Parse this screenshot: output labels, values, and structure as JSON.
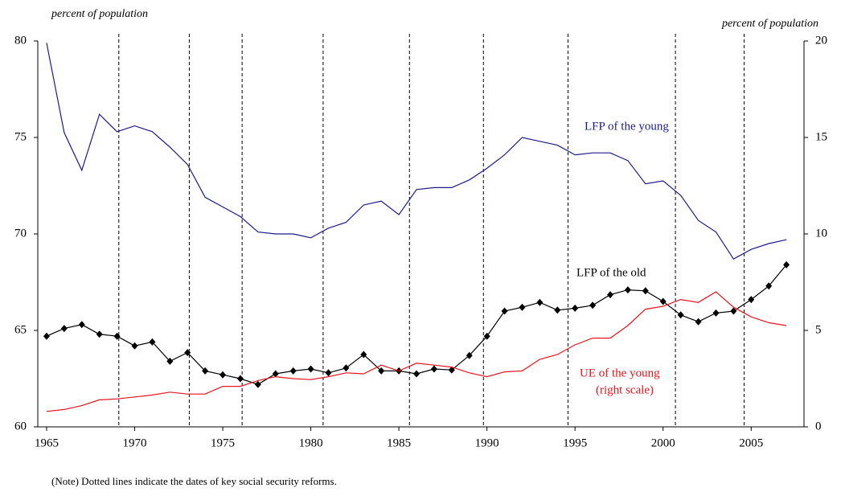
{
  "chart_data": {
    "type": "line",
    "left_axis_label": "percent of population",
    "right_axis_label": "percent of population",
    "note": "(Note) Dotted lines indicate the dates of key social security reforms.",
    "x": [
      1965,
      1966,
      1967,
      1968,
      1969,
      1970,
      1971,
      1972,
      1973,
      1974,
      1975,
      1976,
      1977,
      1978,
      1979,
      1980,
      1981,
      1982,
      1983,
      1984,
      1985,
      1986,
      1987,
      1988,
      1989,
      1990,
      1991,
      1992,
      1993,
      1994,
      1995,
      1996,
      1997,
      1998,
      1999,
      2000,
      2001,
      2002,
      2003,
      2004,
      2005,
      2006,
      2007
    ],
    "series": [
      {
        "name": "LFP of the young",
        "color": "#1c1c8c",
        "axis": "y",
        "values": [
          79.9,
          75.25,
          73.3,
          76.2,
          75.3,
          75.6,
          75.3,
          74.5,
          73.6,
          71.9,
          71.4,
          70.9,
          70.1,
          70.0,
          70.0,
          69.8,
          70.3,
          70.6,
          71.5,
          71.7,
          71.0,
          72.3,
          72.4,
          72.4,
          72.8,
          73.4,
          74.1,
          75.0,
          74.8,
          74.6,
          74.1,
          74.2,
          74.2,
          73.8,
          72.6,
          72.75,
          72.0,
          70.7,
          70.1,
          68.7,
          69.2,
          69.5,
          69.7
        ]
      },
      {
        "name": "LFP of the old",
        "color": "#000000",
        "axis": "y",
        "marker": "diamond",
        "values": [
          64.7,
          65.1,
          65.3,
          64.8,
          64.7,
          64.2,
          64.4,
          63.4,
          63.85,
          62.9,
          62.7,
          62.5,
          62.2,
          62.75,
          62.9,
          63.0,
          62.8,
          63.05,
          63.75,
          62.9,
          62.9,
          62.75,
          63.0,
          62.95,
          63.7,
          64.7,
          66.0,
          66.2,
          66.45,
          66.05,
          66.15,
          66.3,
          66.85,
          67.1,
          67.05,
          66.5,
          65.8,
          65.45,
          65.9,
          66.0,
          66.6,
          67.3,
          68.4
        ]
      },
      {
        "name": "UE of the young",
        "color": "#e8141e",
        "axis": "y2",
        "values": [
          0.8,
          0.9,
          1.1,
          1.4,
          1.45,
          1.55,
          1.65,
          1.8,
          1.7,
          1.7,
          2.1,
          2.1,
          2.4,
          2.6,
          2.5,
          2.45,
          2.6,
          2.8,
          2.75,
          3.2,
          2.9,
          3.3,
          3.2,
          3.1,
          2.8,
          2.6,
          2.85,
          2.9,
          3.5,
          3.75,
          4.25,
          4.6,
          4.6,
          5.25,
          6.1,
          6.25,
          6.6,
          6.45,
          7.0,
          6.2,
          5.7,
          5.4,
          5.25
        ]
      }
    ],
    "annotations": [
      "(right scale)"
    ],
    "reform_dates": [
      1969.1,
      1973.1,
      1976.1,
      1980.7,
      1985.6,
      1989.8,
      1994.6,
      2000.7,
      2004.6
    ],
    "xlim": [
      1964.5,
      2008.0
    ],
    "xticks": [
      1965,
      1970,
      1975,
      1980,
      1985,
      1990,
      1995,
      2000,
      2005
    ],
    "ylim": [
      60,
      80
    ],
    "yticks": [
      60,
      65,
      70,
      75,
      80
    ],
    "y2lim": [
      0,
      20
    ],
    "y2ticks": [
      0,
      5,
      10,
      15,
      20
    ]
  }
}
